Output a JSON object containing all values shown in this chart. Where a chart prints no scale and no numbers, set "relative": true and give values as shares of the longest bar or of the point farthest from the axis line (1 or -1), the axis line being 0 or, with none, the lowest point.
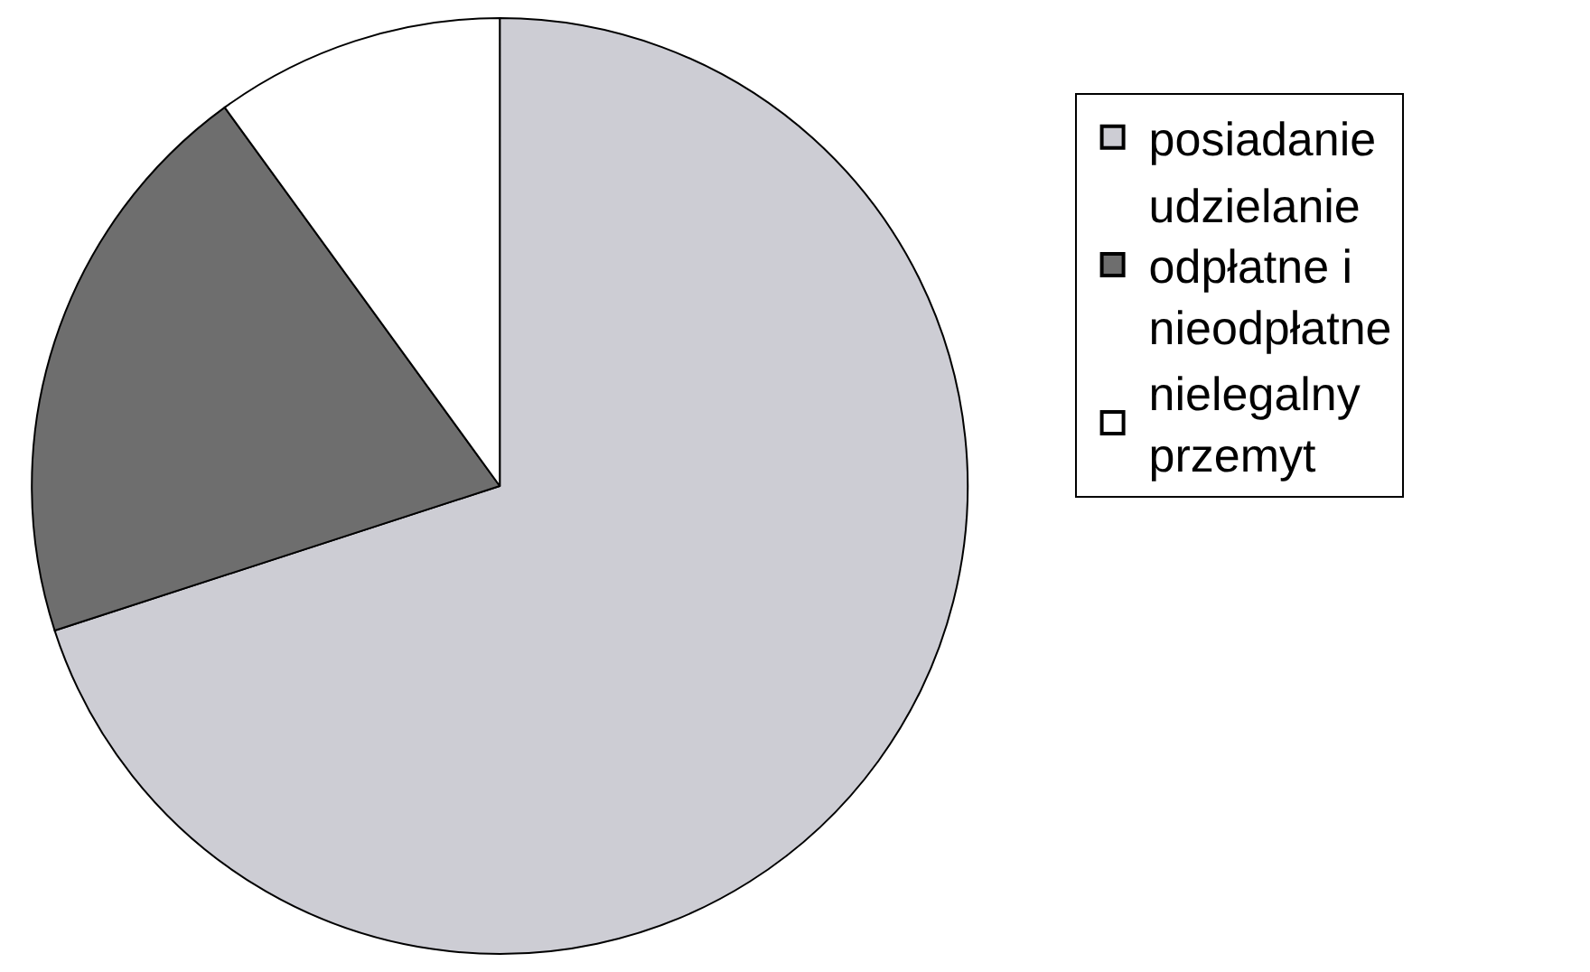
{
  "chart_data": {
    "type": "pie",
    "relative": true,
    "categories": [
      "posiadanie",
      "udzielanie odpłatne i nieodpłatne",
      "nielegalny przemyt"
    ],
    "values": [
      70,
      20,
      10
    ],
    "colors": [
      "#cdcdd4",
      "#6e6e6e",
      "#ffffff"
    ],
    "legend": "right"
  }
}
